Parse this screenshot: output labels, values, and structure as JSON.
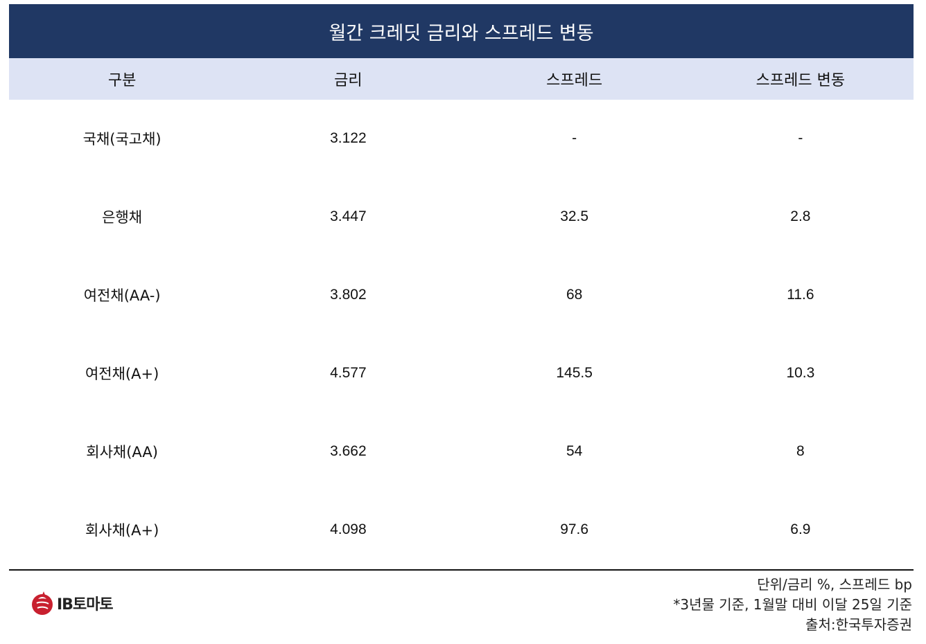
{
  "title": "월간 크레딧 금리와 스프레드 변동",
  "columns": [
    "구분",
    "금리",
    "스프레드",
    "스프레드 변동"
  ],
  "rows": [
    {
      "label": "국채(국고채)",
      "rate": "3.122",
      "spread": "-",
      "spread_change": "-"
    },
    {
      "label": "은행채",
      "rate": "3.447",
      "spread": "32.5",
      "spread_change": "2.8"
    },
    {
      "label": "여전채(AA-)",
      "rate": "3.802",
      "spread": "68",
      "spread_change": "11.6"
    },
    {
      "label": "여전채(A+)",
      "rate": "4.577",
      "spread": "145.5",
      "spread_change": "10.3"
    },
    {
      "label": "회사채(AA)",
      "rate": "3.662",
      "spread": "54",
      "spread_change": "8"
    },
    {
      "label": "회사채(A+)",
      "rate": "4.098",
      "spread": "97.6",
      "spread_change": "6.9"
    }
  ],
  "notes": {
    "unit": "단위/금리 %, 스프레드 bp",
    "basis": "*3년물 기준, 1월말 대비 이달 25일 기준",
    "source": "출처:한국투자증권"
  },
  "logo": {
    "text": "IB토마토",
    "icon": "tomato-logo-icon",
    "color": "#c8202f"
  },
  "colors": {
    "title_bg": "#203864",
    "header_bg": "#dde3f4"
  }
}
